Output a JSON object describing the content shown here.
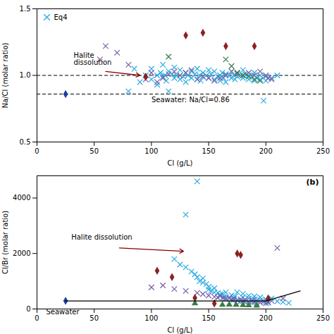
{
  "chart_data": [
    {
      "type": "scatter",
      "xlabel": "Cl (g/L)",
      "ylabel": "Na/Cl (molar ratio)",
      "xlim": [
        0,
        250
      ],
      "ylim": [
        0.5,
        1.5
      ],
      "xticks": [
        0,
        50,
        100,
        150,
        200,
        250
      ],
      "yticks": [
        0.5,
        {
          "value": 1.0,
          "label": "1.0"
        },
        1.5
      ],
      "legend": "upper left",
      "reference_lines": [
        {
          "y": 1.0,
          "color": "black",
          "line_style": "dashed"
        },
        {
          "y": 0.86,
          "color": "black",
          "line_style": "dashed"
        }
      ],
      "series": [
        {
          "name": "Eq4",
          "color": "#29ABE2",
          "marker": "x",
          "x": [
            80,
            85,
            90,
            95,
            100,
            100,
            105,
            105,
            108,
            110,
            110,
            112,
            113,
            115,
            115,
            118,
            120,
            120,
            122,
            125,
            125,
            128,
            130,
            130,
            132,
            135,
            135,
            138,
            140,
            140,
            142,
            143,
            145,
            145,
            148,
            150,
            150,
            152,
            155,
            155,
            158,
            160,
            160,
            162,
            163,
            165,
            165,
            168,
            170,
            170,
            172,
            173,
            175,
            175,
            178,
            180,
            180,
            182,
            185,
            185,
            188,
            190,
            190,
            192,
            195,
            195,
            198,
            200,
            200,
            205,
            210
          ],
          "values": [
            0.88,
            1.05,
            0.95,
            1.0,
            0.97,
            1.05,
            1.0,
            0.93,
            1.02,
            0.99,
            1.08,
            1.0,
            0.96,
            1.03,
            0.88,
            1.01,
            0.98,
            1.06,
            1.0,
            0.97,
            1.04,
            0.99,
            1.02,
            0.95,
            1.0,
            1.03,
            0.98,
            1.01,
            0.97,
            1.05,
            1.0,
            0.96,
            1.02,
            0.99,
            1.0,
            0.98,
            1.04,
            1.01,
            0.97,
            1.03,
            0.99,
            1.0,
            0.96,
            1.02,
            0.98,
            1.01,
            0.95,
            1.0,
            0.98,
            1.03,
            1.0,
            0.97,
            1.02,
            0.99,
            1.0,
            0.98,
            1.04,
            1.01,
            0.97,
            1.0,
            0.99,
            0.96,
            1.02,
            0.98,
            1.0,
            0.97,
            0.81,
            0.99,
            0.96,
            0.98,
            1.0
          ]
        },
        {
          "color": "#7B5EA7",
          "marker": "x",
          "x": [
            55,
            60,
            70,
            80,
            95,
            100,
            105,
            110,
            115,
            120,
            125,
            130,
            135,
            140,
            145,
            150,
            155,
            160,
            165,
            170,
            175,
            180,
            185,
            190,
            195,
            200,
            202,
            205
          ],
          "values": [
            1.12,
            1.22,
            1.17,
            1.08,
            0.97,
            1.02,
            0.95,
            0.98,
            1.01,
            1.03,
            1.0,
            1.02,
            1.04,
            0.97,
            0.99,
            0.98,
            0.96,
            0.98,
            1.0,
            1.03,
            1.01,
            1.0,
            1.02,
            1.0,
            1.03,
            1.0,
            0.98,
            0.97
          ]
        },
        {
          "color": "#3A7D44",
          "marker": "x",
          "x": [
            115,
            165,
            170,
            175,
            180,
            185,
            190,
            195
          ],
          "values": [
            1.14,
            1.12,
            1.07,
            1.02,
            1.0,
            0.99,
            0.97,
            0.96
          ]
        },
        {
          "color": "#8B2222",
          "marker": "diamond",
          "x": [
            95,
            130,
            145,
            165,
            190
          ],
          "values": [
            0.99,
            1.3,
            1.32,
            1.22,
            1.22
          ]
        },
        {
          "color": "#1C3F9E",
          "marker": "diamond",
          "x": [
            25
          ],
          "values": [
            0.86
          ]
        }
      ],
      "arrows": [
        {
          "from": [
            60,
            1.03
          ],
          "to": [
            90,
            1.0
          ],
          "color": "#8B0000"
        }
      ],
      "annotations": [
        {
          "text": "Halite\ndissolution",
          "x": 32,
          "y": 1.08
        },
        {
          "text": "Seawater: Na/Cl=0.86",
          "x": 100,
          "y": 0.8
        }
      ]
    },
    {
      "type": "scatter",
      "xlabel": "Cl (g/L)",
      "ylabel": "Cl/Br (molar ratio)",
      "xlim": [
        0,
        250
      ],
      "ylim": [
        0,
        4800
      ],
      "xticks": [
        0,
        50,
        100,
        150,
        200,
        250
      ],
      "yticks": [
        0,
        2000,
        4000
      ],
      "series": [
        {
          "color": "#29ABE2",
          "marker": "x",
          "x": [
            120,
            125,
            130,
            135,
            138,
            140,
            142,
            145,
            145,
            148,
            150,
            150,
            152,
            155,
            155,
            158,
            160,
            160,
            162,
            163,
            165,
            165,
            168,
            170,
            170,
            172,
            173,
            175,
            175,
            178,
            180,
            180,
            182,
            185,
            185,
            188,
            190,
            190,
            192,
            195,
            195,
            198,
            200,
            200,
            202,
            205,
            210,
            215,
            220
          ],
          "values": [
            1800,
            1600,
            1500,
            1350,
            1250,
            1150,
            1000,
            950,
            1100,
            900,
            800,
            700,
            650,
            600,
            750,
            580,
            520,
            480,
            550,
            440,
            400,
            600,
            380,
            350,
            500,
            320,
            450,
            300,
            600,
            280,
            420,
            550,
            260,
            380,
            480,
            240,
            350,
            450,
            220,
            320,
            420,
            280,
            350,
            280,
            220,
            380,
            280,
            250,
            220
          ]
        },
        {
          "color": "#29ABE2",
          "marker": "x",
          "x": [
            130,
            140
          ],
          "values": [
            3400,
            4600
          ]
        },
        {
          "color": "#7B5EA7",
          "marker": "x",
          "x": [
            100,
            110,
            120,
            130,
            140,
            145,
            150,
            155,
            158,
            160,
            163,
            165,
            168,
            170,
            172,
            175,
            178,
            180,
            182,
            185,
            188,
            190,
            192,
            195,
            198,
            200,
            202,
            205,
            210,
            215
          ],
          "values": [
            780,
            850,
            720,
            650,
            580,
            540,
            490,
            440,
            410,
            460,
            390,
            370,
            410,
            340,
            370,
            310,
            350,
            290,
            330,
            270,
            310,
            250,
            290,
            230,
            270,
            210,
            250,
            290,
            2200,
            380
          ]
        },
        {
          "color": "#3A7D44",
          "marker": "triangle",
          "x": [
            138,
            162,
            168,
            174,
            180,
            185,
            192
          ],
          "values": [
            200,
            150,
            160,
            150,
            140,
            130,
            120
          ]
        },
        {
          "color": "#8B2222",
          "marker": "diamond",
          "x": [
            105,
            118,
            138,
            155,
            175,
            178,
            202
          ],
          "values": [
            1380,
            1150,
            400,
            200,
            2000,
            1950,
            380
          ]
        },
        {
          "color": "#1C3F9E",
          "marker": "diamond",
          "x": [
            25
          ],
          "values": [
            290
          ]
        },
        {
          "type": "line",
          "color": "black",
          "line_style": "solid",
          "x": [
            25,
            200
          ],
          "values": [
            290,
            290
          ]
        },
        {
          "type": "line",
          "color": "black",
          "line_style": "solid",
          "x": [
            200,
            230
          ],
          "values": [
            290,
            650
          ]
        }
      ],
      "arrows": [
        {
          "from": [
            72,
            2200
          ],
          "to": [
            128,
            2080
          ],
          "color": "#8B0000"
        }
      ],
      "annotations": [
        {
          "text": "Seawater",
          "x": 8,
          "y": -190
        },
        {
          "text": "Halite dissolution",
          "x": 30,
          "y": 2500
        },
        {
          "text": "(b)"
        }
      ]
    }
  ]
}
